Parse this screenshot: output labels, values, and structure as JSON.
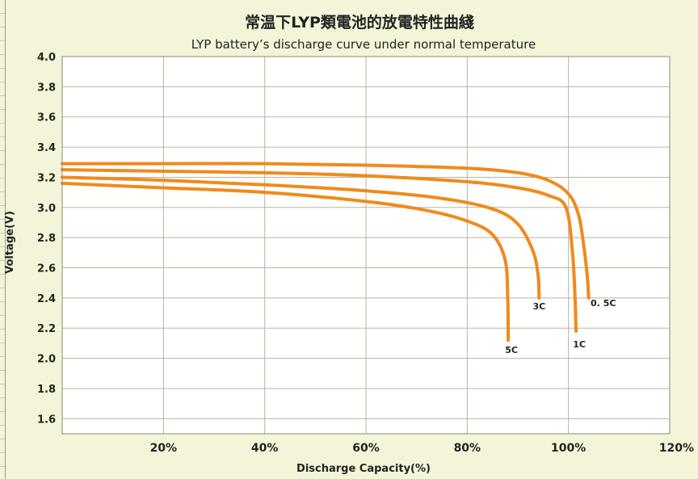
{
  "chart_data": {
    "type": "line",
    "title": "常温下LYP類電池的放電特性曲綫",
    "subtitle": "LYP battery’s discharge curve under normal temperature",
    "xlabel": "Discharge Capacity(%)",
    "ylabel": "Voltage(V)",
    "xlim": [
      0,
      120
    ],
    "ylim": [
      1.5,
      4.0
    ],
    "x_ticks": [
      20,
      40,
      60,
      80,
      100,
      120
    ],
    "x_tick_labels": [
      "20%",
      "40%",
      "60%",
      "80%",
      "100%",
      "120%"
    ],
    "y_ticks": [
      1.6,
      1.8,
      2.0,
      2.2,
      2.4,
      2.6,
      2.8,
      3.0,
      3.2,
      3.4,
      3.6,
      3.8,
      4.0
    ],
    "y_tick_labels": [
      "1.6",
      "1.8",
      "2.0",
      "2.2",
      "2.4",
      "2.6",
      "2.8",
      "3.0",
      "3.2",
      "3.4",
      "3.6",
      "3.8",
      "4.0"
    ],
    "grid": true,
    "colors": {
      "series": "#f08a1c",
      "grid": "#b5b5a0",
      "text": "#222222"
    },
    "series": [
      {
        "name": "0. 5C",
        "x": [
          0,
          20,
          40,
          60,
          80,
          90,
          96,
          100,
          102,
          103,
          103.7,
          104
        ],
        "y": [
          3.29,
          3.29,
          3.29,
          3.28,
          3.26,
          3.23,
          3.18,
          3.09,
          2.95,
          2.75,
          2.55,
          2.4
        ]
      },
      {
        "name": "1C",
        "x": [
          0,
          20,
          40,
          60,
          80,
          90,
          96,
          99.5,
          100.8,
          101.3,
          101.5
        ],
        "y": [
          3.25,
          3.24,
          3.23,
          3.21,
          3.17,
          3.13,
          3.08,
          3.0,
          2.7,
          2.4,
          2.18
        ]
      },
      {
        "name": "3C",
        "x": [
          0,
          20,
          40,
          60,
          75,
          85,
          90,
          93,
          94,
          94.2
        ],
        "y": [
          3.2,
          3.18,
          3.15,
          3.11,
          3.06,
          2.99,
          2.89,
          2.71,
          2.55,
          2.4
        ]
      },
      {
        "name": "5C",
        "x": [
          0,
          20,
          40,
          60,
          72,
          80,
          85,
          87.5,
          88,
          88.1
        ],
        "y": [
          3.16,
          3.13,
          3.1,
          3.04,
          2.98,
          2.91,
          2.82,
          2.65,
          2.4,
          2.12
        ]
      }
    ]
  }
}
